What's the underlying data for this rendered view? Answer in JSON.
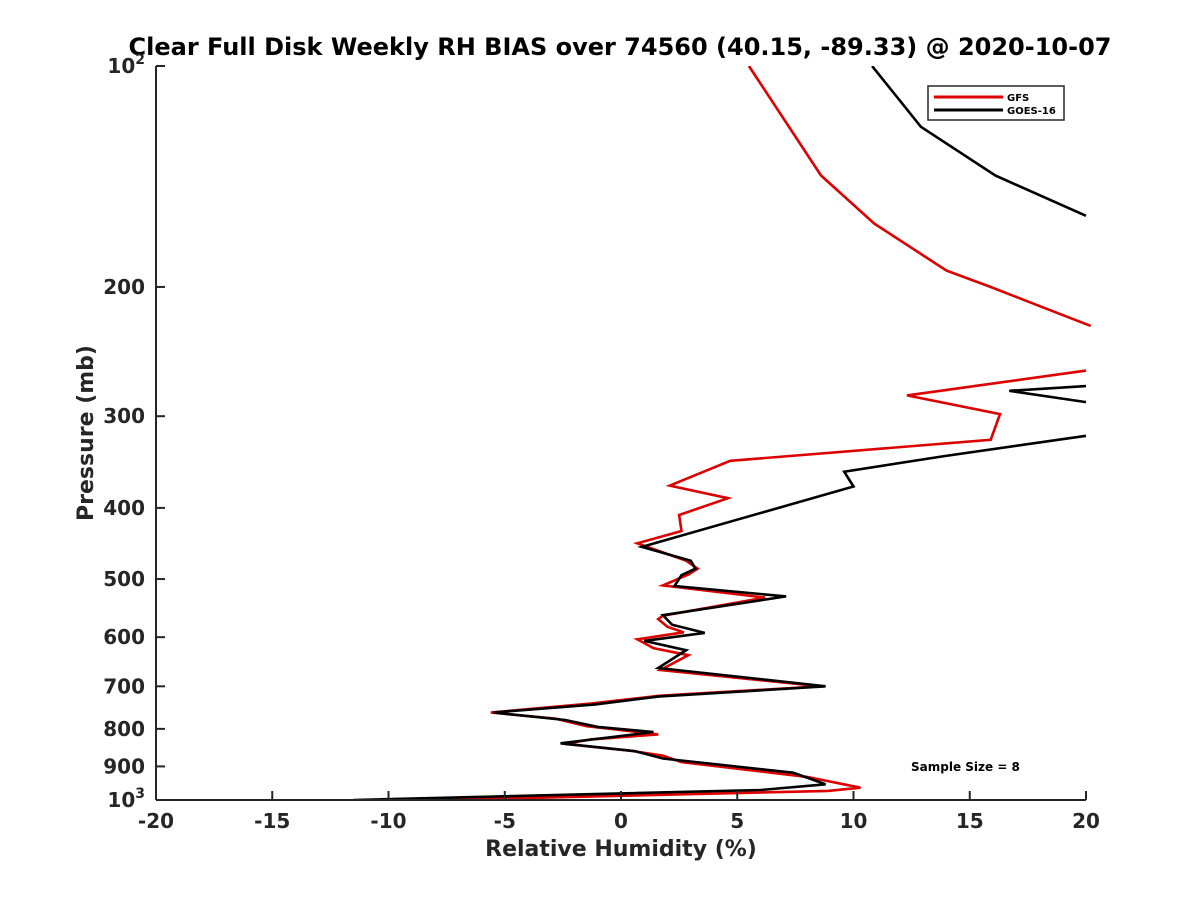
{
  "chart_data": {
    "type": "line",
    "title": "Clear Full Disk Weekly RH BIAS over 74560 (40.15, -89.33) @ 2020-10-07",
    "xlabel": "Relative Humidity (%)",
    "ylabel": "Pressure (mb)",
    "xlim": [
      -20,
      20
    ],
    "ylim": [
      100,
      1000
    ],
    "y_scale": "log",
    "y_reversed": true,
    "x_ticks": [
      "-20",
      "-15",
      "-10",
      "-5",
      "0",
      "5",
      "10",
      "15",
      "20"
    ],
    "y_ticks": [
      {
        "value": 100,
        "base": "10",
        "exp": "2"
      },
      {
        "value": 200,
        "base": "200",
        "exp": ""
      },
      {
        "value": 300,
        "base": "300",
        "exp": ""
      },
      {
        "value": 400,
        "base": "400",
        "exp": ""
      },
      {
        "value": 500,
        "base": "500",
        "exp": ""
      },
      {
        "value": 600,
        "base": "600",
        "exp": ""
      },
      {
        "value": 700,
        "base": "700",
        "exp": ""
      },
      {
        "value": 800,
        "base": "800",
        "exp": ""
      },
      {
        "value": 900,
        "base": "900",
        "exp": ""
      },
      {
        "value": 1000,
        "base": "10",
        "exp": "3"
      }
    ],
    "grid": false,
    "legend_position": "top-right",
    "annotation": "Sample Size = 8",
    "series": [
      {
        "name": "GFS",
        "color": "#dd0000",
        "points": [
          [
            5.5,
            100
          ],
          [
            8.6,
            141
          ],
          [
            10.9,
            164
          ],
          [
            14.0,
            190
          ],
          [
            15.9,
            200
          ],
          [
            20.2,
            226
          ],
          [
            null,
            null
          ],
          [
            20.0,
            260
          ],
          [
            12.3,
            281
          ],
          [
            16.3,
            298
          ],
          [
            15.9,
            323
          ],
          [
            4.7,
            345
          ],
          [
            2.1,
            373
          ],
          [
            4.6,
            388
          ],
          [
            2.5,
            409
          ],
          [
            2.6,
            430
          ],
          [
            0.7,
            447
          ],
          [
            2.8,
            472
          ],
          [
            3.3,
            484
          ],
          [
            2.9,
            493
          ],
          [
            1.8,
            510
          ],
          [
            6.2,
            530
          ],
          [
            1.8,
            561
          ],
          [
            1.6,
            567
          ],
          [
            2.0,
            581
          ],
          [
            2.7,
            591
          ],
          [
            0.7,
            604
          ],
          [
            1.4,
            621
          ],
          [
            2.9,
            635
          ],
          [
            1.7,
            665
          ],
          [
            8.6,
            700
          ],
          [
            1.7,
            721
          ],
          [
            -1.3,
            739
          ],
          [
            -5.6,
            760
          ],
          [
            -2.8,
            775
          ],
          [
            -1.5,
            793
          ],
          [
            1.6,
            814
          ],
          [
            -1.3,
            827
          ],
          [
            -2.4,
            839
          ],
          [
            0.3,
            856
          ],
          [
            1.8,
            870
          ],
          [
            2.6,
            888
          ],
          [
            8.0,
            930
          ],
          [
            10.3,
            962
          ],
          [
            8.9,
            972
          ],
          [
            -7.8,
            1000
          ]
        ]
      },
      {
        "name": "GOES-16",
        "color": "#000000",
        "points": [
          [
            10.8,
            100
          ],
          [
            12.9,
            121
          ],
          [
            16.1,
            141
          ],
          [
            20.0,
            160
          ],
          [
            null,
            null
          ],
          [
            20.0,
            273
          ],
          [
            16.7,
            277
          ],
          [
            20.0,
            287
          ],
          [
            null,
            null
          ],
          [
            20.0,
            319
          ],
          [
            13.9,
            340
          ],
          [
            9.6,
            357
          ],
          [
            10.0,
            374
          ],
          [
            0.9,
            452
          ],
          [
            3.0,
            472
          ],
          [
            3.2,
            484
          ],
          [
            2.6,
            494
          ],
          [
            2.3,
            511
          ],
          [
            7.1,
            528
          ],
          [
            1.8,
            560
          ],
          [
            2.2,
            577
          ],
          [
            3.6,
            592
          ],
          [
            1.0,
            607
          ],
          [
            2.8,
            625
          ],
          [
            1.6,
            661
          ],
          [
            8.8,
            700
          ],
          [
            1.6,
            723
          ],
          [
            -1.1,
            741
          ],
          [
            -5.5,
            760
          ],
          [
            -2.4,
            778
          ],
          [
            -1.0,
            795
          ],
          [
            1.4,
            808
          ],
          [
            -2.6,
            837
          ],
          [
            0.6,
            858
          ],
          [
            1.8,
            878
          ],
          [
            7.4,
            918
          ],
          [
            8.0,
            932
          ],
          [
            8.8,
            952
          ],
          [
            6.0,
            969
          ],
          [
            -11.5,
            1000
          ]
        ]
      }
    ]
  }
}
